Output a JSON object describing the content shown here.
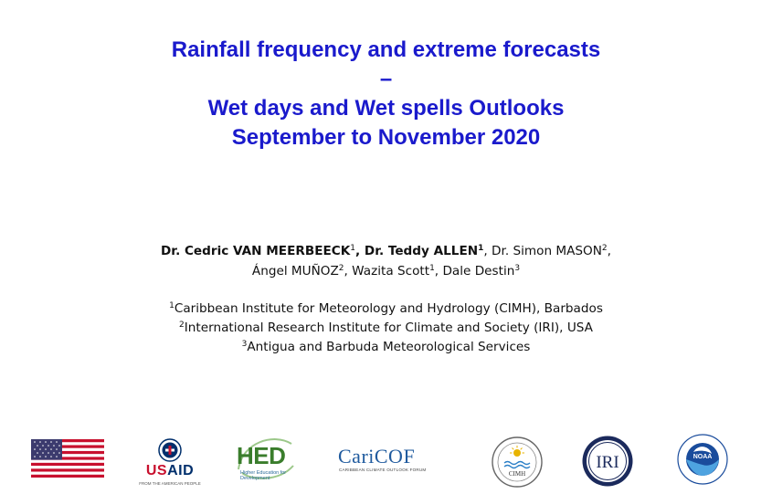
{
  "title": {
    "line1": "Rainfall frequency and extreme forecasts",
    "line2": "–",
    "line3": "Wet days and Wet spells Outlooks",
    "line4": "September to November 2020"
  },
  "authors": {
    "a1_name": "Dr. Cedric VAN MEERBEECK",
    "a1_sup": "1",
    "sep1": ", ",
    "a2_name": "Dr. Teddy ALLEN",
    "a2_sup": "1",
    "a3_name": ", Dr. Simon MASON",
    "a3_sup": "2",
    "a3_tail": ",",
    "a4_name": "Ángel MUÑOZ",
    "a4_sup": "2",
    "a5_name": ", Wazita Scott",
    "a5_sup": "1",
    "a6_name": ", Dale Destin",
    "a6_sup": "3"
  },
  "affiliations": [
    {
      "sup": "1",
      "text": "Caribbean Institute for Meteorology and Hydrology (CIMH), Barbados"
    },
    {
      "sup": "2",
      "text": "International Research Institute for Climate and Society (IRI), USA"
    },
    {
      "sup": "3",
      "text": "Antigua and Barbuda Meteorological Services"
    }
  ],
  "logos": {
    "usaid_text_us": "US",
    "usaid_text_aid": "AID",
    "usaid_tagline": "FROM THE AMERICAN PEOPLE",
    "hed_text": "HED",
    "hed_tagline": "Higher Education for Development",
    "caricof_text": "CariCOF",
    "caricof_tagline": "CARIBBEAN CLIMATE OUTLOOK FORUM",
    "cimh_text": "CIMH",
    "iri_text": "IRI",
    "noaa_text": "NOAA"
  },
  "colors": {
    "title": "#1a1acc",
    "usaid_blue": "#002f6c",
    "usaid_red": "#c8102e",
    "hed_green": "#3a7d2c",
    "caricof_blue": "#1f5a9e",
    "iri_navy": "#1b2a5c",
    "noaa_blue": "#1a4c9c"
  }
}
